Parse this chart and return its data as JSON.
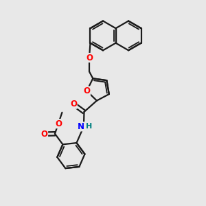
{
  "background_color": "#e8e8e8",
  "bond_color": "#1a1a1a",
  "bond_width": 1.6,
  "atom_colors": {
    "O": "#ff0000",
    "N": "#0000ff",
    "H": "#008080",
    "C": "#1a1a1a"
  },
  "figsize": [
    3.0,
    3.0
  ],
  "dpi": 100,
  "xlim": [
    0,
    10
  ],
  "ylim": [
    0,
    10
  ]
}
